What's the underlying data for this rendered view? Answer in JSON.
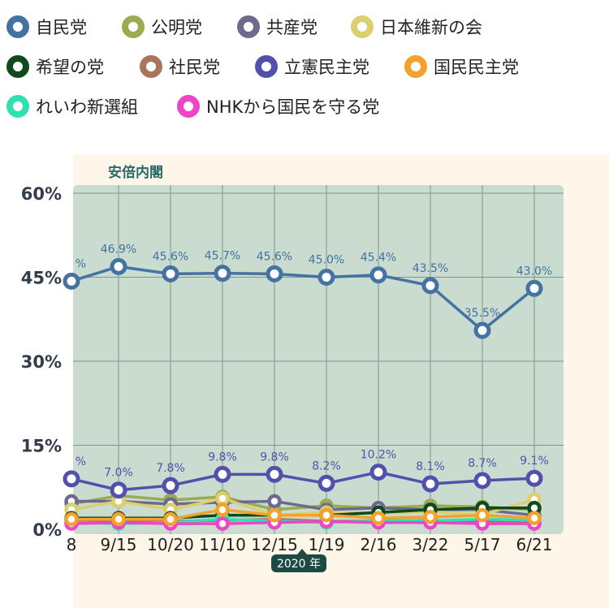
{
  "legend": [
    {
      "label": "自民党",
      "color": "#4472a3"
    },
    {
      "label": "公明党",
      "color": "#9aab50"
    },
    {
      "label": "共産党",
      "color": "#6d6a8e"
    },
    {
      "label": "日本維新の会",
      "color": "#dbcf6e"
    },
    {
      "label": "希望の党",
      "color": "#0f4a1e"
    },
    {
      "label": "社民党",
      "color": "#a9745b"
    },
    {
      "label": "立憲民主党",
      "color": "#5151ad"
    },
    {
      "label": "国民民主党",
      "color": "#f3a22c"
    },
    {
      "label": "れいわ新選組",
      "color": "#2fe1b1"
    },
    {
      "label": "NHKから国民を守る党",
      "color": "#ee45c8"
    }
  ],
  "chart_data": {
    "type": "line",
    "period_label": "安倍内閣",
    "year_badge": "2020 年",
    "yticks": [
      "60%",
      "45%",
      "30%",
      "15%",
      "0%"
    ],
    "ylim": [
      0,
      60
    ],
    "x": [
      "8",
      "9/15",
      "10/20",
      "11/10",
      "12/15",
      "1/19",
      "2/16",
      "3/22",
      "5/17",
      "6/21"
    ],
    "series": [
      {
        "name": "自民党",
        "color": "#4472a3",
        "values": [
          44.3,
          46.9,
          45.6,
          45.7,
          45.6,
          45.0,
          45.4,
          43.5,
          35.5,
          43.0
        ],
        "labels": [
          "%",
          "46.9%",
          "45.6%",
          "45.7%",
          "45.6%",
          "45.0%",
          "45.4%",
          "43.5%",
          "35.5%",
          "43.0%"
        ]
      },
      {
        "name": "立憲民主党",
        "color": "#5151ad",
        "values": [
          9.0,
          7.0,
          7.8,
          9.8,
          9.8,
          8.2,
          10.2,
          8.1,
          8.7,
          9.1
        ],
        "labels": [
          "%",
          "7.0%",
          "7.8%",
          "9.8%",
          "9.8%",
          "8.2%",
          "10.2%",
          "8.1%",
          "8.7%",
          "9.1%"
        ]
      },
      {
        "name": "公明党",
        "color": "#9aab50",
        "values": [
          4.5,
          6.0,
          5.2,
          5.8,
          3.5,
          4.2,
          3.8,
          4.2,
          4.0,
          3.5
        ]
      },
      {
        "name": "共産党",
        "color": "#6d6a8e",
        "values": [
          5.0,
          5.0,
          4.5,
          4.8,
          5.0,
          3.5,
          3.8,
          3.5,
          3.5,
          2.5
        ]
      },
      {
        "name": "日本維新の会",
        "color": "#dbcf6e",
        "values": [
          3.5,
          5.0,
          3.5,
          5.5,
          2.5,
          3.0,
          2.8,
          3.2,
          2.6,
          5.3
        ]
      },
      {
        "name": "希望の党",
        "color": "#0f4a1e",
        "values": [
          2.0,
          2.0,
          2.0,
          2.5,
          2.5,
          2.5,
          3.0,
          3.5,
          3.8,
          3.8
        ]
      },
      {
        "name": "社民党",
        "color": "#a9745b",
        "values": [
          1.6,
          1.5,
          1.4,
          1.6,
          1.8,
          1.4,
          1.5,
          1.6,
          1.4,
          1.2
        ]
      },
      {
        "name": "れいわ新選組",
        "color": "#2fe1b1",
        "values": [
          1.2,
          1.0,
          1.2,
          1.8,
          1.5,
          1.2,
          1.6,
          1.5,
          1.8,
          1.6
        ]
      },
      {
        "name": "NHKから国民を守る党",
        "color": "#ee45c8",
        "values": [
          1.0,
          1.2,
          1.0,
          1.0,
          1.2,
          1.4,
          1.2,
          1.2,
          1.0,
          1.0
        ]
      },
      {
        "name": "国民民主党",
        "color": "#f3a22c",
        "values": [
          1.8,
          1.8,
          1.8,
          3.5,
          2.5,
          2.5,
          2.0,
          2.2,
          2.5,
          2.0
        ]
      }
    ]
  },
  "colors": {
    "plot_bg": "#c9dccf",
    "grid": "#7e9687",
    "badge_bg": "#1e4a44"
  }
}
